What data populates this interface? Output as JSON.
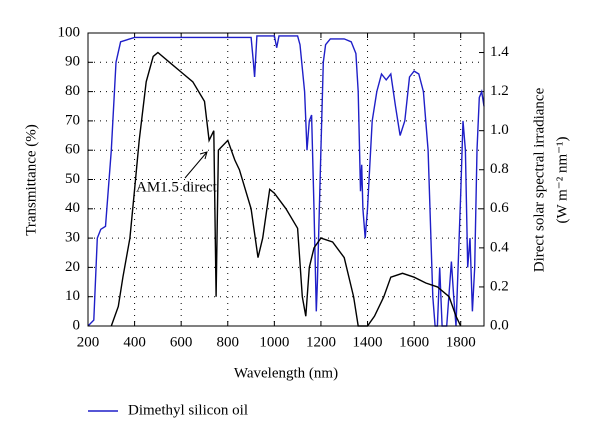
{
  "chart_data": {
    "type": "line",
    "xlabel": "Wavelength (nm)",
    "ylabel": "Transmittance (%)",
    "y2label": [
      "Direct solar spectral irradiance",
      "(W m⁻² nm⁻¹)"
    ],
    "xlim": [
      200,
      1900
    ],
    "xticks": [
      200,
      400,
      600,
      800,
      1000,
      1200,
      1400,
      1600,
      1800
    ],
    "ylim": [
      0,
      100
    ],
    "yticks": [
      0,
      10,
      20,
      30,
      40,
      50,
      60,
      70,
      80,
      90,
      100
    ],
    "y2lim": [
      0,
      1.5
    ],
    "y2ticks": [
      {
        "value": 0,
        "label": "0.0"
      },
      0.2,
      0.4,
      0.6,
      0.8,
      {
        "value": 1,
        "label": "1.0"
      },
      1.2,
      1.4
    ],
    "grid": true,
    "series": [
      {
        "name": "Dimethyl silicon oil",
        "color": "#1f1fc8",
        "x": [
          200,
          225,
          240,
          255,
          275,
          300,
          320,
          340,
          400,
          900,
          910,
          915,
          925,
          1000,
          1010,
          1020,
          1100,
          1110,
          1130,
          1140,
          1150,
          1160,
          1170,
          1180,
          1185,
          1200,
          1210,
          1220,
          1240,
          1300,
          1330,
          1350,
          1360,
          1370,
          1375,
          1380,
          1390,
          1400,
          1420,
          1440,
          1460,
          1480,
          1500,
          1520,
          1540,
          1560,
          1580,
          1600,
          1620,
          1640,
          1660,
          1680,
          1690,
          1700,
          1710,
          1720,
          1740,
          1760,
          1770,
          1780,
          1800,
          1810,
          1820,
          1830,
          1840,
          1850,
          1860,
          1870,
          1880,
          1890,
          1900
        ],
        "values": [
          0,
          2,
          30,
          33,
          34,
          60,
          90,
          97,
          98.5,
          98.5,
          90,
          85,
          99,
          99,
          95,
          99,
          99,
          96,
          80,
          60,
          70,
          72,
          40,
          5,
          15,
          60,
          90,
          96,
          98,
          98,
          97,
          93,
          80,
          46,
          55,
          40,
          30,
          40,
          70,
          80,
          86,
          84,
          86,
          75,
          65,
          70,
          85,
          87,
          86,
          80,
          60,
          10,
          0,
          0,
          20,
          0,
          0,
          22,
          10,
          0,
          45,
          70,
          60,
          20,
          30,
          5,
          20,
          60,
          78,
          80,
          75
        ]
      },
      {
        "name": "AM1.5 direct",
        "color": "#000000",
        "axis": "y2",
        "x": [
          300,
          330,
          350,
          380,
          400,
          420,
          450,
          480,
          500,
          550,
          600,
          650,
          700,
          720,
          740,
          750,
          760,
          800,
          830,
          850,
          900,
          930,
          950,
          980,
          1000,
          1050,
          1100,
          1120,
          1135,
          1150,
          1170,
          1200,
          1250,
          1300,
          1340,
          1360,
          1400,
          1430,
          1470,
          1500,
          1550,
          1600,
          1650,
          1700,
          1750,
          1780,
          1800
        ],
        "values": [
          0,
          0.1,
          0.25,
          0.45,
          0.7,
          0.95,
          1.25,
          1.38,
          1.4,
          1.35,
          1.3,
          1.25,
          1.15,
          0.95,
          1.0,
          0.15,
          0.9,
          0.95,
          0.85,
          0.8,
          0.6,
          0.35,
          0.45,
          0.7,
          0.68,
          0.6,
          0.5,
          0.15,
          0.05,
          0.3,
          0.4,
          0.45,
          0.43,
          0.35,
          0.15,
          0,
          0,
          0.05,
          0.15,
          0.25,
          0.27,
          0.25,
          0.22,
          0.2,
          0.15,
          0.05,
          0
        ]
      }
    ]
  }
}
